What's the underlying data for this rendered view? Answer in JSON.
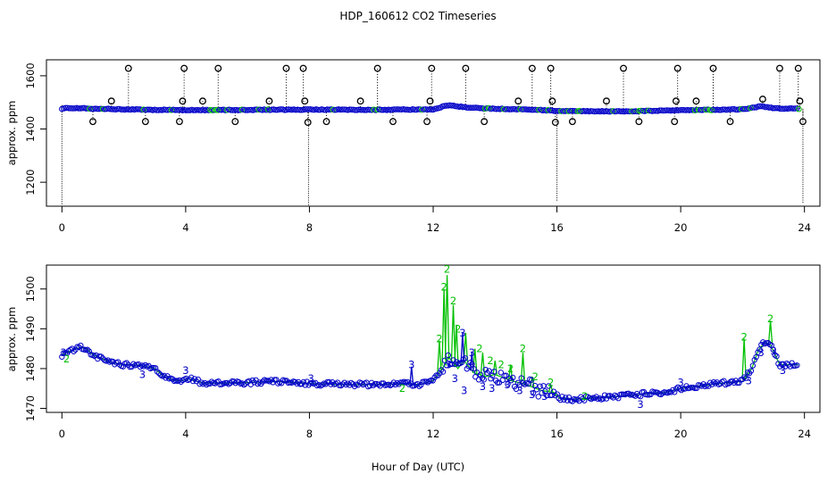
{
  "figure": {
    "title": "HDP_160612  CO2 Timeseries",
    "xlabel": "Hour of Day (UTC)"
  },
  "colors": {
    "raw": "#000000",
    "flag2": "#00c000",
    "flag3": "#0000c8",
    "axis": "#000000"
  },
  "chart_data": [
    {
      "type": "scatter",
      "panel": "top",
      "xlabel": "",
      "ylabel": "approx. ppm",
      "xlim": [
        -0.5,
        24.5
      ],
      "ylim": [
        1110,
        1660
      ],
      "xticks": [
        0,
        4,
        8,
        12,
        16,
        20,
        24
      ],
      "yticks": [
        1200,
        1400,
        1600
      ],
      "grid": false,
      "baseline": [
        [
          0,
          1477
        ],
        [
          0.5,
          1479
        ],
        [
          1,
          1476
        ],
        [
          2,
          1474
        ],
        [
          3,
          1472
        ],
        [
          4,
          1471
        ],
        [
          6,
          1472
        ],
        [
          8,
          1473
        ],
        [
          10,
          1472
        ],
        [
          12,
          1474
        ],
        [
          12.5,
          1490
        ],
        [
          13,
          1482
        ],
        [
          14,
          1476
        ],
        [
          15,
          1474
        ],
        [
          16,
          1468
        ],
        [
          18,
          1466
        ],
        [
          20,
          1470
        ],
        [
          22,
          1474
        ],
        [
          22.6,
          1485
        ],
        [
          23,
          1478
        ],
        [
          23.8,
          1476
        ]
      ],
      "high_markers": [
        {
          "x": 2.15,
          "y": 1628
        },
        {
          "x": 3.95,
          "y": 1628
        },
        {
          "x": 5.05,
          "y": 1628
        },
        {
          "x": 7.25,
          "y": 1628
        },
        {
          "x": 7.8,
          "y": 1628
        },
        {
          "x": 10.2,
          "y": 1628
        },
        {
          "x": 11.95,
          "y": 1628
        },
        {
          "x": 13.05,
          "y": 1628
        },
        {
          "x": 15.2,
          "y": 1628
        },
        {
          "x": 15.8,
          "y": 1628
        },
        {
          "x": 18.15,
          "y": 1628
        },
        {
          "x": 19.9,
          "y": 1628
        },
        {
          "x": 21.05,
          "y": 1628
        },
        {
          "x": 23.2,
          "y": 1628
        },
        {
          "x": 23.8,
          "y": 1628
        }
      ],
      "mid_markers": [
        {
          "x": 1.6,
          "y": 1505
        },
        {
          "x": 3.9,
          "y": 1505
        },
        {
          "x": 4.55,
          "y": 1505
        },
        {
          "x": 6.7,
          "y": 1505
        },
        {
          "x": 7.85,
          "y": 1505
        },
        {
          "x": 9.65,
          "y": 1505
        },
        {
          "x": 11.9,
          "y": 1505
        },
        {
          "x": 14.75,
          "y": 1505
        },
        {
          "x": 15.85,
          "y": 1505
        },
        {
          "x": 17.6,
          "y": 1505
        },
        {
          "x": 19.85,
          "y": 1505
        },
        {
          "x": 20.5,
          "y": 1505
        },
        {
          "x": 22.65,
          "y": 1512
        },
        {
          "x": 23.85,
          "y": 1505
        }
      ],
      "low_markers": [
        {
          "x": 1.0,
          "y": 1428
        },
        {
          "x": 2.7,
          "y": 1428
        },
        {
          "x": 3.8,
          "y": 1428
        },
        {
          "x": 5.6,
          "y": 1428
        },
        {
          "x": 7.95,
          "y": 1425
        },
        {
          "x": 8.55,
          "y": 1428
        },
        {
          "x": 10.7,
          "y": 1428
        },
        {
          "x": 11.8,
          "y": 1428
        },
        {
          "x": 13.65,
          "y": 1428
        },
        {
          "x": 15.95,
          "y": 1425
        },
        {
          "x": 16.5,
          "y": 1428
        },
        {
          "x": 18.65,
          "y": 1428
        },
        {
          "x": 19.8,
          "y": 1428
        },
        {
          "x": 21.6,
          "y": 1428
        },
        {
          "x": 23.95,
          "y": 1428
        }
      ],
      "spikes": [
        {
          "x": 0.0,
          "y0": 1490,
          "y1": 1115
        },
        {
          "x": 7.97,
          "y0": 1470,
          "y1": 1110
        },
        {
          "x": 16.0,
          "y0": 1470,
          "y1": 1128
        },
        {
          "x": 23.95,
          "y0": 1470,
          "y1": 1120
        }
      ]
    },
    {
      "type": "scatter",
      "panel": "bottom",
      "xlabel": "",
      "ylabel": "approx. ppm",
      "xlim": [
        -0.5,
        24.5
      ],
      "ylim": [
        1469,
        1506
      ],
      "xticks": [
        0,
        4,
        8,
        12,
        16,
        20,
        24
      ],
      "yticks": [
        1470,
        1480,
        1490,
        1500
      ],
      "grid": false,
      "line": [
        [
          0,
          1483.5
        ],
        [
          0.3,
          1484.5
        ],
        [
          0.6,
          1485.3
        ],
        [
          0.8,
          1485
        ],
        [
          1.0,
          1483.5
        ],
        [
          1.3,
          1482.5
        ],
        [
          1.6,
          1481.5
        ],
        [
          2.0,
          1481
        ],
        [
          2.5,
          1480.8
        ],
        [
          3.0,
          1480
        ],
        [
          3.3,
          1478
        ],
        [
          3.6,
          1477
        ],
        [
          3.9,
          1477
        ],
        [
          4.1,
          1477.5
        ],
        [
          4.5,
          1476.5
        ],
        [
          5.0,
          1476.3
        ],
        [
          6.0,
          1476.5
        ],
        [
          7.0,
          1476.8
        ],
        [
          7.8,
          1476.3
        ],
        [
          8.2,
          1476.2
        ],
        [
          9.0,
          1476
        ],
        [
          10.0,
          1476
        ],
        [
          11.0,
          1476.2
        ],
        [
          11.6,
          1476
        ],
        [
          12.0,
          1477
        ],
        [
          12.3,
          1480
        ],
        [
          12.5,
          1483
        ],
        [
          12.8,
          1480
        ],
        [
          13.0,
          1482
        ],
        [
          13.3,
          1479
        ],
        [
          13.7,
          1478
        ],
        [
          14.0,
          1478.5
        ],
        [
          14.5,
          1477
        ],
        [
          15.0,
          1476
        ],
        [
          15.5,
          1474.5
        ],
        [
          15.9,
          1474
        ],
        [
          16.1,
          1472.5
        ],
        [
          16.5,
          1472.3
        ],
        [
          17.0,
          1472.5
        ],
        [
          17.5,
          1472.8
        ],
        [
          18.0,
          1473
        ],
        [
          18.5,
          1473.3
        ],
        [
          19.0,
          1473.8
        ],
        [
          19.5,
          1474
        ],
        [
          20.0,
          1475
        ],
        [
          20.5,
          1475.5
        ],
        [
          21.0,
          1476
        ],
        [
          21.5,
          1476.5
        ],
        [
          22.0,
          1476.8
        ],
        [
          22.3,
          1480
        ],
        [
          22.5,
          1484.5
        ],
        [
          22.7,
          1486.5
        ],
        [
          22.9,
          1486
        ],
        [
          23.2,
          1481
        ],
        [
          23.5,
          1481
        ],
        [
          23.8,
          1481
        ]
      ],
      "green_spikes": [
        {
          "x": 12.2,
          "y": 1487
        },
        {
          "x": 12.35,
          "y": 1500
        },
        {
          "x": 12.45,
          "y": 1503.5
        },
        {
          "x": 12.65,
          "y": 1496
        },
        {
          "x": 12.75,
          "y": 1491
        },
        {
          "x": 13.05,
          "y": 1489
        },
        {
          "x": 13.35,
          "y": 1485
        },
        {
          "x": 13.6,
          "y": 1484
        },
        {
          "x": 14.0,
          "y": 1482
        },
        {
          "x": 14.5,
          "y": 1481
        },
        {
          "x": 14.9,
          "y": 1484
        },
        {
          "x": 15.2,
          "y": 1478
        },
        {
          "x": 15.8,
          "y": 1476
        },
        {
          "x": 22.05,
          "y": 1487.5
        },
        {
          "x": 22.9,
          "y": 1492
        }
      ],
      "blue_spikes": [
        {
          "x": 11.3,
          "y": 1480.5
        },
        {
          "x": 12.95,
          "y": 1489
        },
        {
          "x": 13.25,
          "y": 1484
        }
      ],
      "green_labels": [
        {
          "x": 0.15,
          "y": 1482.5
        },
        {
          "x": 12.2,
          "y": 1487.5
        },
        {
          "x": 12.45,
          "y": 1505
        },
        {
          "x": 12.35,
          "y": 1500.5
        },
        {
          "x": 12.65,
          "y": 1497
        },
        {
          "x": 12.8,
          "y": 1490
        },
        {
          "x": 13.5,
          "y": 1485
        },
        {
          "x": 13.85,
          "y": 1482
        },
        {
          "x": 14.2,
          "y": 1481
        },
        {
          "x": 14.5,
          "y": 1480
        },
        {
          "x": 14.9,
          "y": 1485
        },
        {
          "x": 15.3,
          "y": 1478
        },
        {
          "x": 15.8,
          "y": 1476.5
        },
        {
          "x": 16.9,
          "y": 1473
        },
        {
          "x": 11.0,
          "y": 1475
        },
        {
          "x": 22.05,
          "y": 1488
        },
        {
          "x": 22.9,
          "y": 1492.5
        }
      ],
      "blue_labels": [
        {
          "x": 0.05,
          "y": 1484
        },
        {
          "x": 2.6,
          "y": 1478.5
        },
        {
          "x": 4.0,
          "y": 1479.5
        },
        {
          "x": 8.05,
          "y": 1477.5
        },
        {
          "x": 11.3,
          "y": 1481
        },
        {
          "x": 12.5,
          "y": 1481
        },
        {
          "x": 12.95,
          "y": 1489
        },
        {
          "x": 13.25,
          "y": 1484
        },
        {
          "x": 13.0,
          "y": 1474.5
        },
        {
          "x": 13.6,
          "y": 1475.5
        },
        {
          "x": 13.9,
          "y": 1475
        },
        {
          "x": 14.4,
          "y": 1476
        },
        {
          "x": 14.8,
          "y": 1474.5
        },
        {
          "x": 15.2,
          "y": 1473.5
        },
        {
          "x": 15.6,
          "y": 1473
        },
        {
          "x": 12.7,
          "y": 1477.5
        },
        {
          "x": 18.7,
          "y": 1471
        },
        {
          "x": 20.0,
          "y": 1476.5
        },
        {
          "x": 22.6,
          "y": 1484
        },
        {
          "x": 23.0,
          "y": 1484.5
        },
        {
          "x": 23.3,
          "y": 1479.5
        },
        {
          "x": 22.2,
          "y": 1477
        }
      ]
    }
  ]
}
